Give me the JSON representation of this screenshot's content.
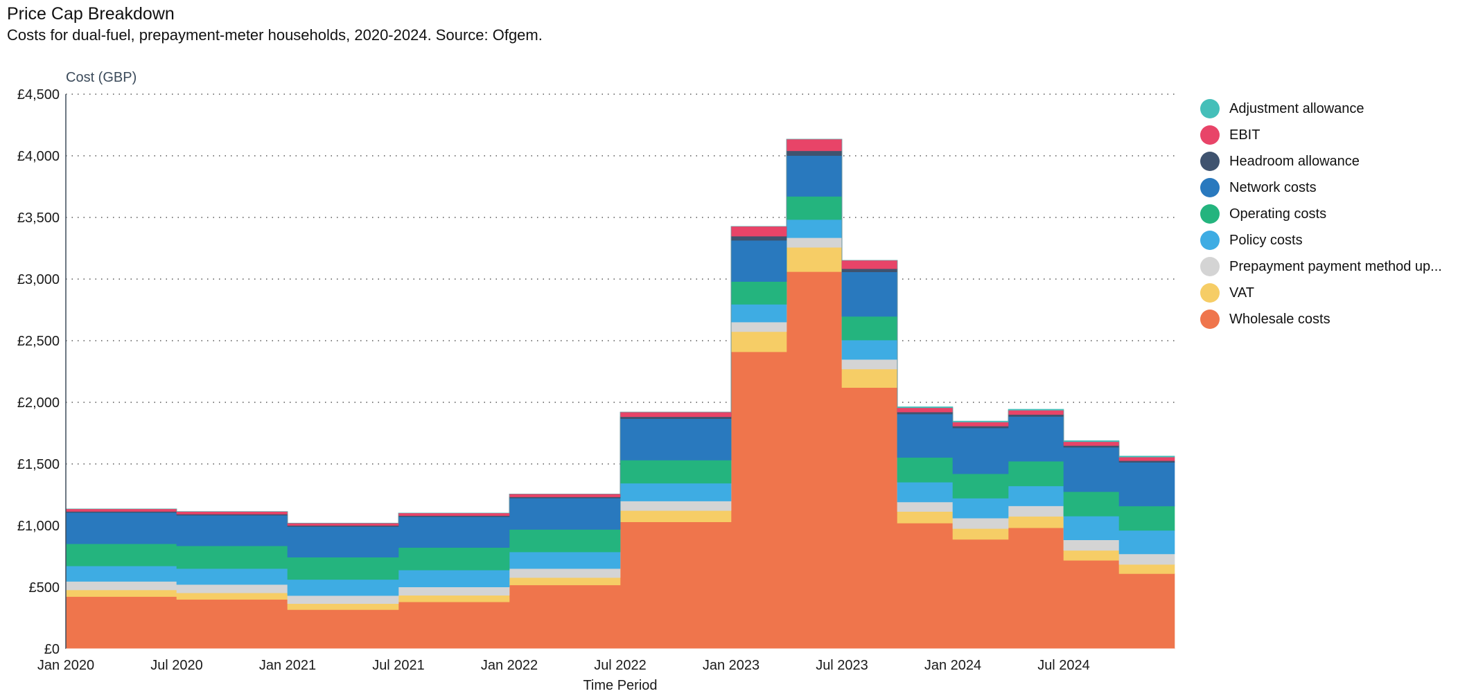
{
  "title": "Price Cap Breakdown",
  "subtitle": "Costs for dual-fuel, prepayment-meter households, 2020-2024. Source: Ofgem.",
  "chart_data": {
    "type": "area",
    "stacked": true,
    "step": true,
    "ylabel": "Cost (GBP)",
    "xlabel": "Time Period",
    "ylim": [
      0,
      4500
    ],
    "yticks": [
      0,
      500,
      1000,
      1500,
      2000,
      2500,
      3000,
      3500,
      4000,
      4500
    ],
    "ytick_labels": [
      "£0",
      "£500",
      "£1,000",
      "£1,500",
      "£2,000",
      "£2,500",
      "£3,000",
      "£3,500",
      "£4,000",
      "£4,500"
    ],
    "xticks": [
      "Jan 2020",
      "Jul 2020",
      "Jan 2021",
      "Jul 2021",
      "Jan 2022",
      "Jul 2022",
      "Jan 2023",
      "Jul 2023",
      "Jan 2024",
      "Jul 2024"
    ],
    "grid": "horizontal dotted",
    "legend_position": "right",
    "periods": [
      "Jan 2020",
      "Jul 2020",
      "Jan 2021",
      "Jul 2021",
      "Jan 2022",
      "Jul 2022",
      "Oct 2022",
      "Jan 2023",
      "Apr 2023",
      "Jul 2023",
      "Oct 2023",
      "Jan 2024",
      "Apr 2024",
      "Jul 2024",
      "Oct 2024"
    ],
    "series": [
      {
        "name": "Wholesale costs",
        "color": "#ef754c",
        "values": [
          424,
          401,
          318,
          381,
          518,
          1030,
          1030,
          2410,
          3060,
          2120,
          1020,
          888,
          982,
          718,
          610
        ]
      },
      {
        "name": "VAT",
        "color": "#f6cd66",
        "values": [
          54,
          53,
          49,
          53,
          60,
          92,
          92,
          163,
          197,
          150,
          94,
          88,
          93,
          81,
          75
        ]
      },
      {
        "name": "Prepayment payment method up...",
        "color": "#d4d4d4",
        "values": [
          69,
          68,
          65,
          68,
          73,
          77,
          77,
          78,
          78,
          78,
          77,
          85,
          85,
          85,
          85
        ]
      },
      {
        "name": "Policy costs",
        "color": "#3eace3",
        "values": [
          125,
          129,
          131,
          137,
          135,
          145,
          145,
          144,
          148,
          157,
          161,
          161,
          161,
          193,
          191
        ]
      },
      {
        "name": "Operating costs",
        "color": "#24b47e",
        "values": [
          180,
          184,
          180,
          183,
          183,
          187,
          187,
          185,
          188,
          192,
          201,
          198,
          201,
          198,
          197
        ]
      },
      {
        "name": "Network costs",
        "color": "#2979be",
        "values": [
          254,
          249,
          249,
          250,
          254,
          336,
          336,
          334,
          331,
          361,
          352,
          372,
          363,
          360,
          355
        ]
      },
      {
        "name": "Headroom allowance",
        "color": "#3f536f",
        "values": [
          9,
          9,
          9,
          9,
          10,
          16,
          16,
          34,
          38,
          26,
          16,
          15,
          16,
          14,
          13
        ]
      },
      {
        "name": "EBIT",
        "color": "#e84468",
        "values": [
          21,
          21,
          19,
          21,
          24,
          38,
          38,
          80,
          95,
          68,
          35,
          33,
          35,
          32,
          30
        ]
      },
      {
        "name": "Adjustment allowance",
        "color": "#45bfb9",
        "values": [
          0,
          0,
          0,
          0,
          0,
          0,
          0,
          0,
          0,
          0,
          8,
          8,
          8,
          8,
          8
        ]
      }
    ]
  },
  "legend_order": [
    "Adjustment allowance",
    "EBIT",
    "Headroom allowance",
    "Network costs",
    "Operating costs",
    "Policy costs",
    "Prepayment payment method up...",
    "VAT",
    "Wholesale costs"
  ]
}
